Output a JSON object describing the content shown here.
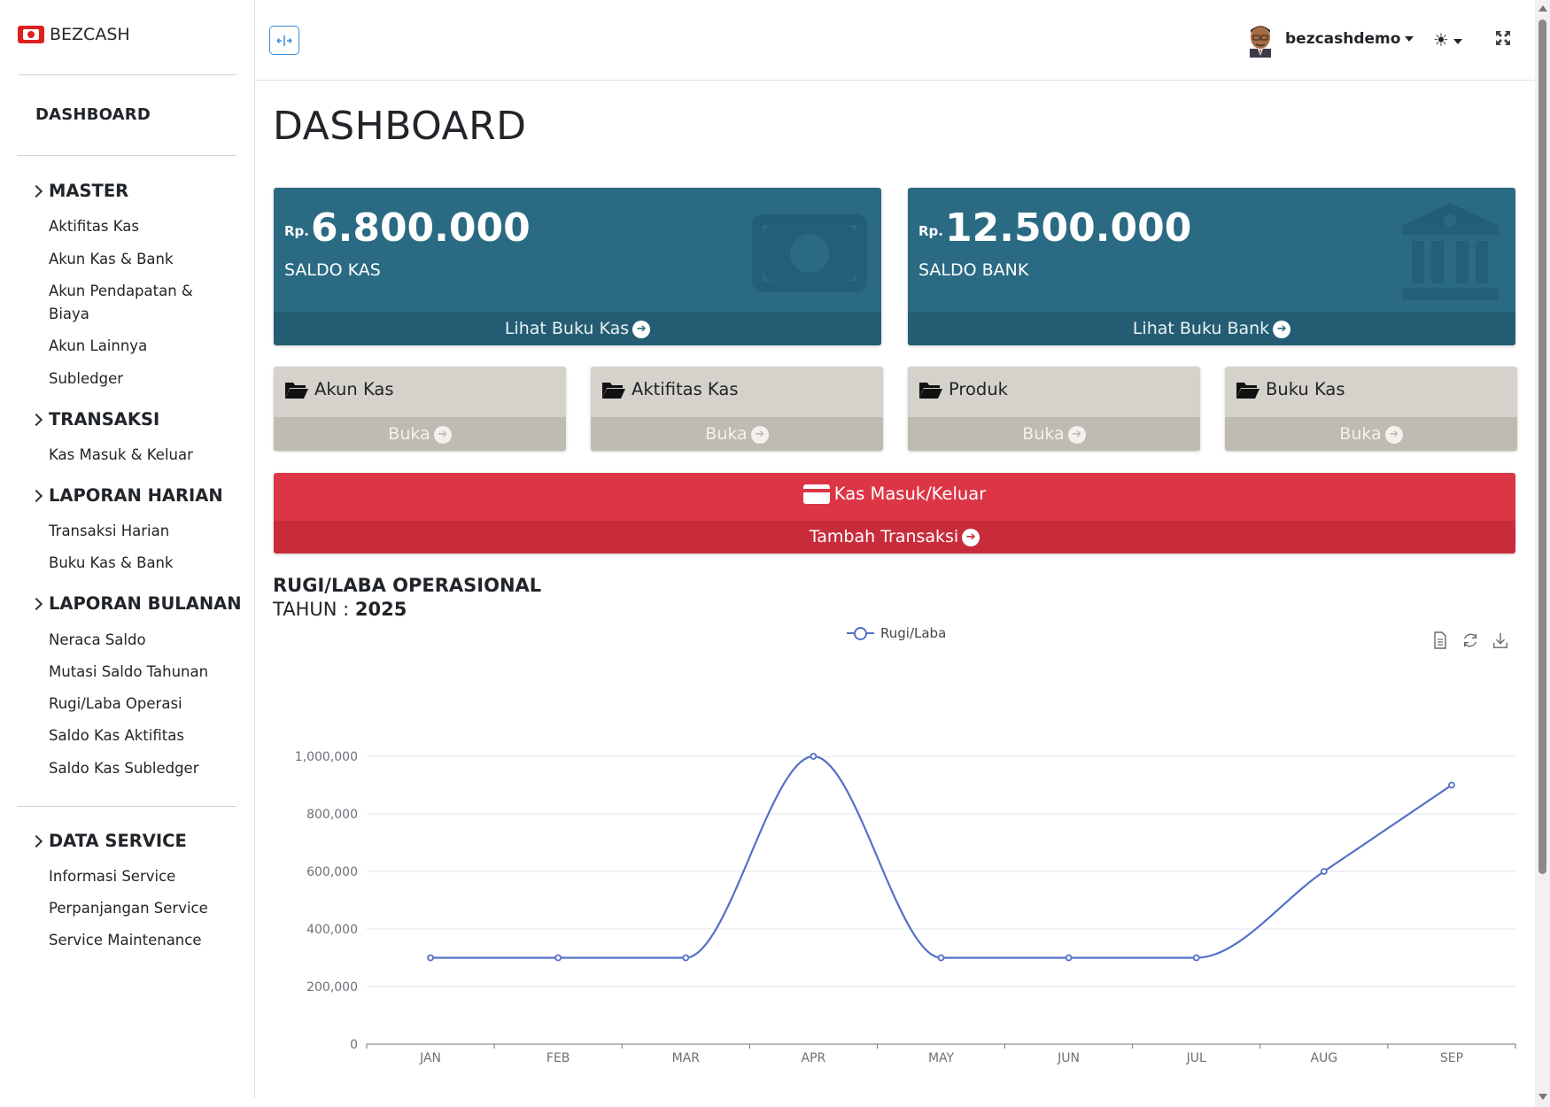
{
  "brand": {
    "name": "BEZCASH"
  },
  "sidebar": {
    "dashboard": "DASHBOARD",
    "sections": [
      {
        "label": "MASTER",
        "items": [
          "Aktifitas Kas",
          "Akun Kas & Bank",
          "Akun Pendapatan & Biaya",
          "Akun Lainnya",
          "Subledger"
        ]
      },
      {
        "label": "TRANSAKSI",
        "items": [
          "Kas Masuk & Keluar"
        ]
      },
      {
        "label": "LAPORAN HARIAN",
        "items": [
          "Transaksi Harian",
          "Buku Kas & Bank"
        ]
      },
      {
        "label": "LAPORAN BULANAN",
        "items": [
          "Neraca Saldo",
          "Mutasi Saldo Tahunan",
          "Rugi/Laba Operasi",
          "Saldo Kas Aktifitas",
          "Saldo Kas Subledger"
        ]
      },
      {
        "label": "DATA SERVICE",
        "items": [
          "Informasi Service",
          "Perpanjangan Service",
          "Service Maintenance"
        ]
      }
    ]
  },
  "topbar": {
    "username": "bezcashdemo",
    "toggle_icon": "sidebar-toggle-icon",
    "theme_icon": "sun-icon",
    "fullscreen_icon": "fullscreen-icon"
  },
  "main": {
    "page_title": "DASHBOARD",
    "stat_cards": [
      {
        "currency": "Rp.",
        "amount": "6.800.000",
        "label": "SALDO KAS",
        "link": "Lihat Buku Kas",
        "icon": "money-icon"
      },
      {
        "currency": "Rp.",
        "amount": "12.500.000",
        "label": "SALDO BANK",
        "link": "Lihat Buku Bank",
        "icon": "bank-icon"
      }
    ],
    "quick_cards": [
      {
        "title": "Akun Kas",
        "link": "Buka"
      },
      {
        "title": "Aktifitas Kas",
        "link": "Buka"
      },
      {
        "title": "Produk",
        "link": "Buka"
      },
      {
        "title": "Buku Kas",
        "link": "Buka"
      }
    ],
    "transaction_card": {
      "title": "Kas Masuk/Keluar",
      "link": "Tambah Transaksi"
    },
    "chart_header": {
      "title": "RUGI/LABA OPERASIONAL",
      "year_label": "TAHUN :",
      "year": "2025"
    }
  },
  "colors": {
    "stat_card": "#2a6a83",
    "quick_card": "#d5d2cb",
    "danger": "#dc3545",
    "series": "#5470c6"
  },
  "chart_data": {
    "type": "line",
    "title": "",
    "categories": [
      "JAN",
      "FEB",
      "MAR",
      "APR",
      "MAY",
      "JUN",
      "JUL",
      "AUG",
      "SEP"
    ],
    "series": [
      {
        "name": "Rugi/Laba",
        "values": [
          300000,
          300000,
          300000,
          1000000,
          300000,
          300000,
          300000,
          600000,
          900000
        ]
      }
    ],
    "y_ticks": [
      "0",
      "200,000",
      "400,000",
      "600,000",
      "800,000",
      "1,000,000"
    ],
    "ylim": [
      0,
      1000000
    ],
    "legend": "top-center",
    "grid": true,
    "smooth": true
  }
}
